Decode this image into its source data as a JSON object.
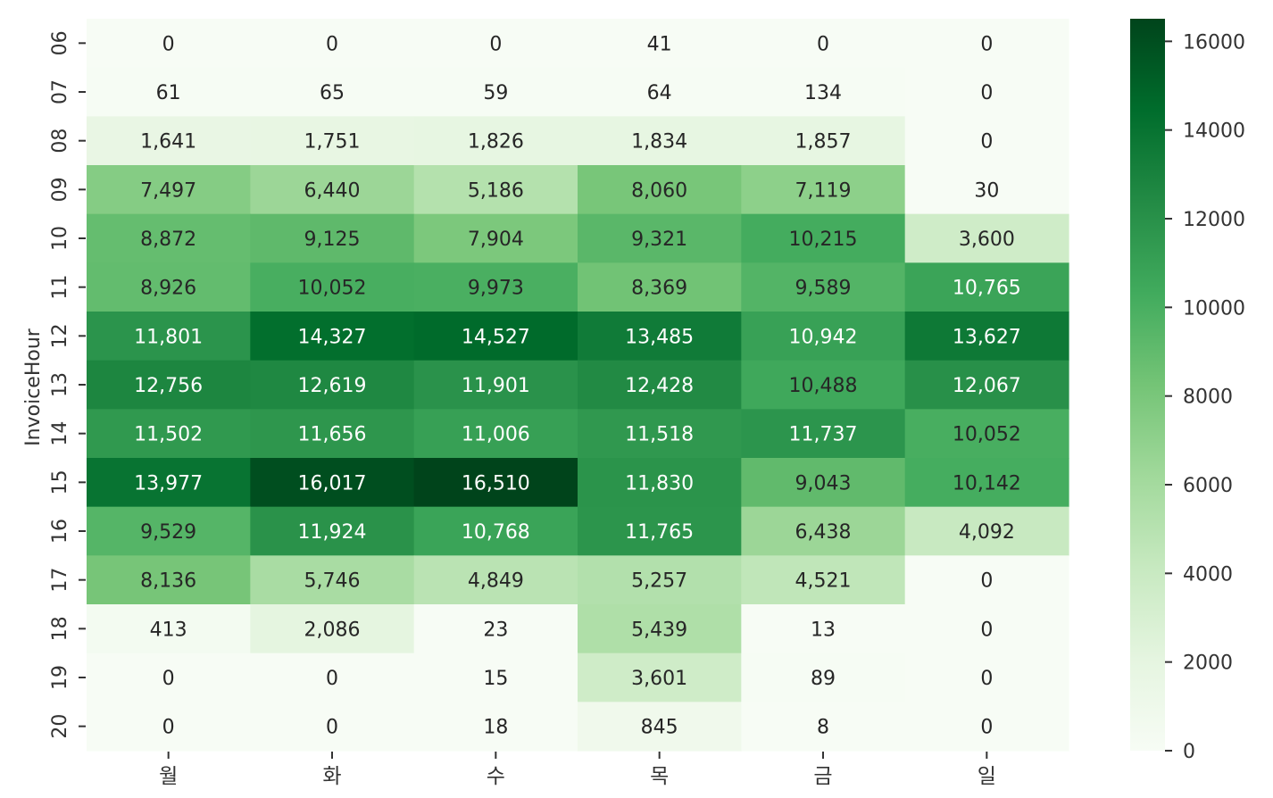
{
  "chart_data": {
    "type": "heatmap",
    "title": "",
    "xlabel": "",
    "ylabel": "InvoiceHour",
    "x_categories": [
      "월",
      "화",
      "수",
      "목",
      "금",
      "일"
    ],
    "y_categories": [
      "06",
      "07",
      "08",
      "09",
      "10",
      "11",
      "12",
      "13",
      "14",
      "15",
      "16",
      "17",
      "18",
      "19",
      "20"
    ],
    "values": [
      [
        0,
        0,
        0,
        41,
        0,
        0
      ],
      [
        61,
        65,
        59,
        64,
        134,
        0
      ],
      [
        1641,
        1751,
        1826,
        1834,
        1857,
        0
      ],
      [
        7497,
        6440,
        5186,
        8060,
        7119,
        30
      ],
      [
        8872,
        9125,
        7904,
        9321,
        10215,
        3600
      ],
      [
        8926,
        10052,
        9973,
        8369,
        9589,
        10765
      ],
      [
        11801,
        14327,
        14527,
        13485,
        10942,
        13627
      ],
      [
        12756,
        12619,
        11901,
        12428,
        10488,
        12067
      ],
      [
        11502,
        11656,
        11006,
        11518,
        11737,
        10052
      ],
      [
        13977,
        16017,
        16510,
        11830,
        9043,
        10142
      ],
      [
        9529,
        11924,
        10768,
        11765,
        6438,
        4092
      ],
      [
        8136,
        5746,
        4849,
        5257,
        4521,
        0
      ],
      [
        413,
        2086,
        23,
        5439,
        13,
        0
      ],
      [
        0,
        0,
        15,
        3601,
        89,
        0
      ],
      [
        0,
        0,
        18,
        845,
        8,
        0
      ]
    ],
    "colorbar": {
      "min": 0,
      "max": 16510,
      "ticks": [
        0,
        2000,
        4000,
        6000,
        8000,
        10000,
        12000,
        14000,
        16000
      ],
      "colormap": "Greens",
      "color_stops": [
        "#f7fcf5",
        "#e5f5e0",
        "#c7e9c0",
        "#a1d99b",
        "#74c476",
        "#41ab5d",
        "#238b45",
        "#006d2c",
        "#00441b"
      ]
    },
    "grid": false,
    "legend": "colorbar-right"
  }
}
